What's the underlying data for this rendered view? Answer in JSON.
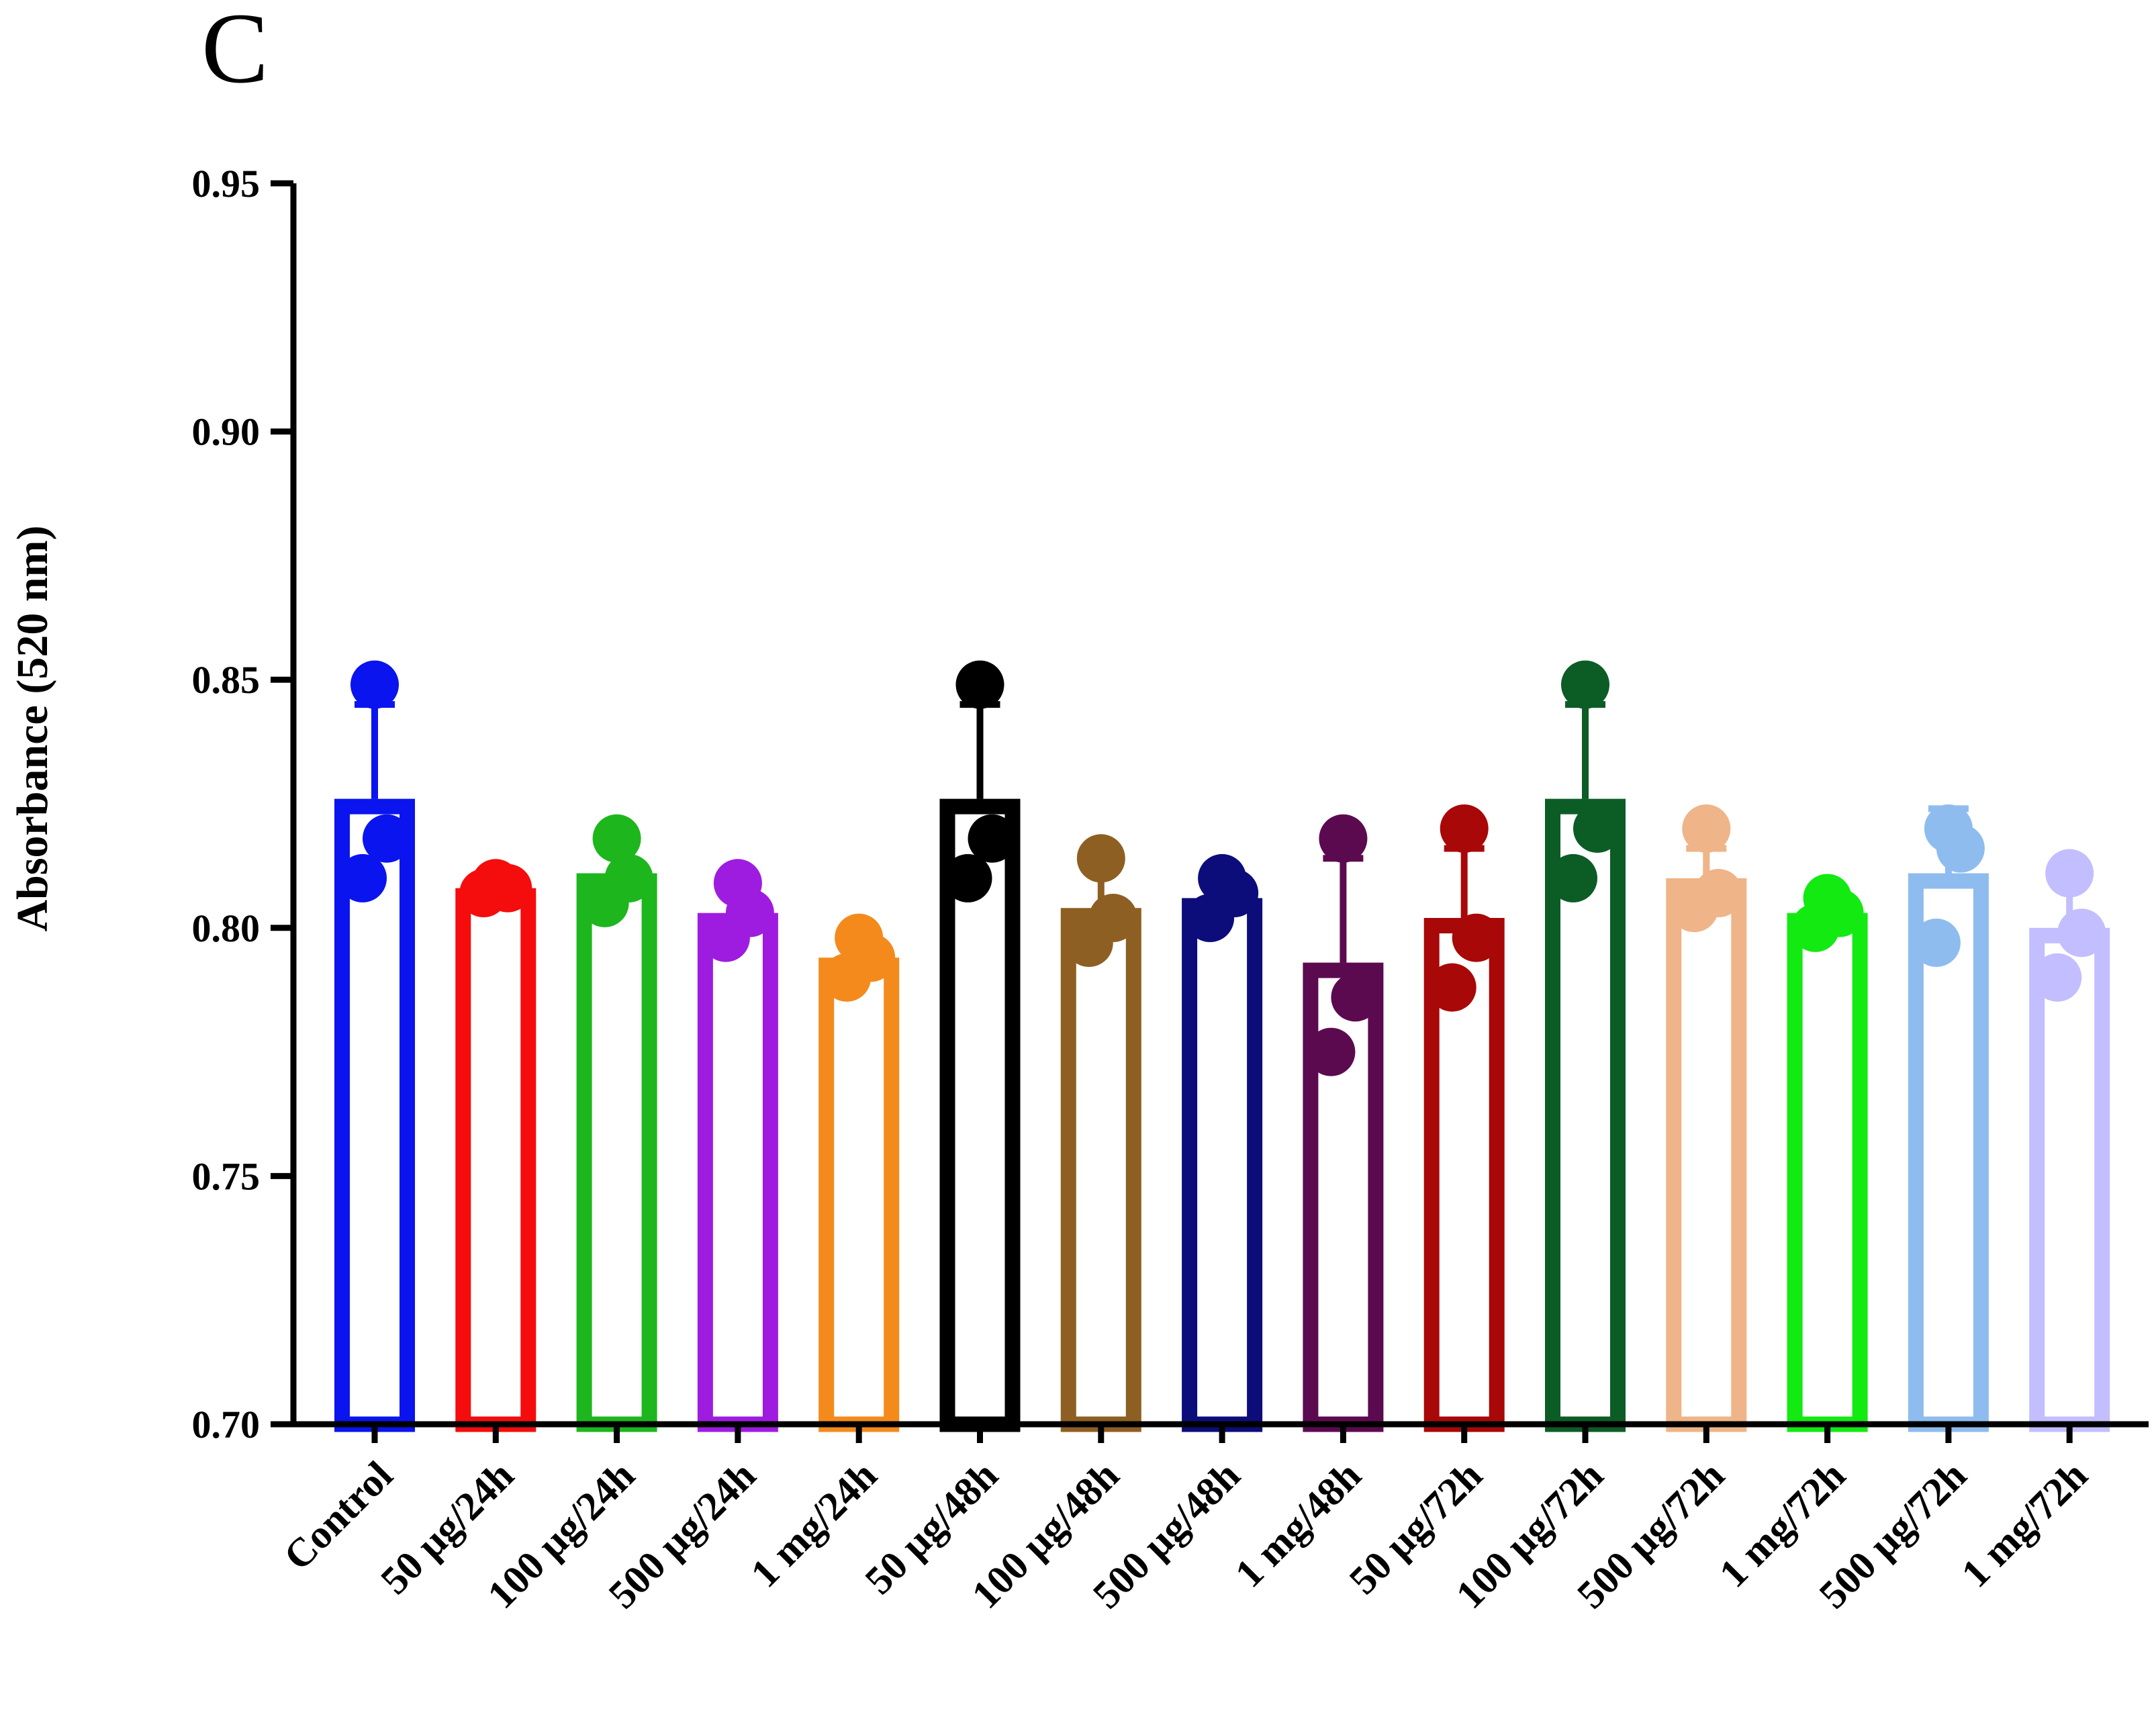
{
  "chart_data": {
    "type": "bar",
    "panel_label": "C",
    "title": "",
    "xlabel": "",
    "ylabel": "Absorbance (520 nm)",
    "ylim": [
      0.7,
      0.95
    ],
    "yticks": [
      0.7,
      0.75,
      0.8,
      0.85,
      0.9,
      0.95
    ],
    "ytick_labels": [
      "0.70",
      "0.75",
      "0.80",
      "0.85",
      "0.90",
      "0.95"
    ],
    "categories": [
      "Control",
      "50 µg/24h",
      "100 µg/24h",
      "500 µg/24h",
      "1 mg/24h",
      "50 µg/48h",
      "100 µg/48h",
      "500 µg/48h",
      "1 mg/48h",
      "50 µg/72h",
      "100 µg/72h",
      "500 µg/72h",
      "1 mg/72h",
      "500 µg/72h",
      "1 mg/72h"
    ],
    "values": [
      0.826,
      0.808,
      0.811,
      0.803,
      0.794,
      0.826,
      0.804,
      0.806,
      0.793,
      0.802,
      0.826,
      0.81,
      0.803,
      0.811,
      0.8
    ],
    "errors": [
      0.019,
      0.002,
      0.007,
      0.007,
      0.005,
      0.019,
      0.009,
      0.004,
      0.021,
      0.014,
      0.019,
      0.006,
      0.004,
      0.013,
      0.01
    ],
    "points": [
      [
        0.849,
        0.81,
        0.818
      ],
      [
        0.809,
        0.807,
        0.808
      ],
      [
        0.818,
        0.805,
        0.81
      ],
      [
        0.809,
        0.798,
        0.803
      ],
      [
        0.798,
        0.79,
        0.794
      ],
      [
        0.849,
        0.81,
        0.818
      ],
      [
        0.814,
        0.797,
        0.802
      ],
      [
        0.81,
        0.802,
        0.807
      ],
      [
        0.818,
        0.775,
        0.786
      ],
      [
        0.82,
        0.788,
        0.798
      ],
      [
        0.849,
        0.81,
        0.82
      ],
      [
        0.82,
        0.804,
        0.807
      ],
      [
        0.806,
        0.8,
        0.803
      ],
      [
        0.82,
        0.797,
        0.816
      ],
      [
        0.811,
        0.79,
        0.799
      ]
    ],
    "colors": [
      "#0a14ee",
      "#f50c0c",
      "#1db61d",
      "#9e1ce0",
      "#f48a1c",
      "#000000",
      "#8e5f22",
      "#0c0c7a",
      "#5c0a50",
      "#a80808",
      "#0c5c26",
      "#efb487",
      "#12ea12",
      "#8ebcef",
      "#c2beff"
    ],
    "grid": false,
    "legend": "none"
  }
}
